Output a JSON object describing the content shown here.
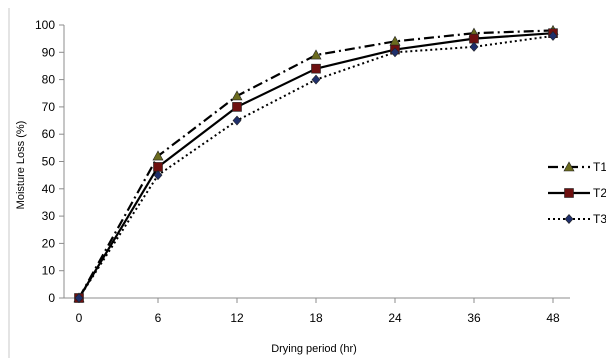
{
  "chart_data": {
    "type": "line",
    "xlabel": "Drying period (hr)",
    "ylabel": "Moisture Loss (%)",
    "categories": [
      "0",
      "6",
      "12",
      "18",
      "24",
      "36",
      "48"
    ],
    "ylim": [
      0,
      100
    ],
    "ytick_step": 10,
    "yticks": [
      "0",
      "10",
      "20",
      "30",
      "40",
      "50",
      "60",
      "70",
      "80",
      "90",
      "100"
    ],
    "grid": false,
    "legend_position": "right",
    "series": [
      {
        "name": "T1",
        "values": [
          0,
          52,
          74,
          89,
          94,
          97,
          98
        ],
        "marker": "triangle",
        "dash": "dash-dot",
        "color": "#000000",
        "marker_fill": "#6b6b1e"
      },
      {
        "name": "T2",
        "values": [
          0,
          48,
          70,
          84,
          91,
          95,
          97
        ],
        "marker": "square",
        "dash": "solid",
        "color": "#000000",
        "marker_fill": "#6e1010"
      },
      {
        "name": "T3",
        "values": [
          0,
          45,
          65,
          80,
          90,
          92,
          96
        ],
        "marker": "diamond",
        "dash": "dotted",
        "color": "#000000",
        "marker_fill": "#1f2f6b"
      }
    ]
  }
}
